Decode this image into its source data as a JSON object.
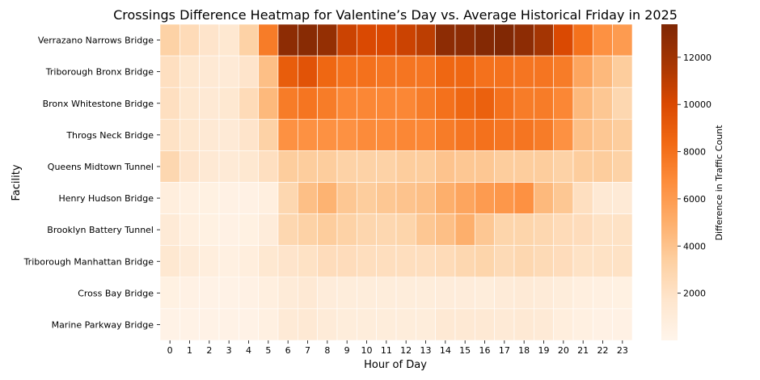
{
  "chart_data": {
    "type": "heatmap",
    "title": "Crossings Difference Heatmap for Valentine’s Day vs. Average Historical Friday in 2025",
    "xlabel": "Hour of Day",
    "ylabel": "Facility",
    "colorbar_label": "Difference in Traffic Count",
    "colorbar_ticks": [
      2000,
      4000,
      6000,
      8000,
      10000,
      12000
    ],
    "colorbar_range": [
      0,
      13400
    ],
    "colormap": [
      "#fff5eb",
      "#fee6ce",
      "#fdd0a2",
      "#fdae6b",
      "#fd8d3c",
      "#f16913",
      "#d94801",
      "#a63603",
      "#7f2704"
    ],
    "x": [
      "0",
      "1",
      "2",
      "3",
      "4",
      "5",
      "6",
      "7",
      "8",
      "9",
      "10",
      "11",
      "12",
      "13",
      "14",
      "15",
      "16",
      "17",
      "18",
      "19",
      "20",
      "21",
      "22",
      "23"
    ],
    "y": [
      "Verrazano Narrows Bridge",
      "Triborough Bronx Bridge",
      "Bronx Whitestone Bridge",
      "Throgs Neck Bridge",
      "Queens Midtown Tunnel",
      "Henry Hudson Bridge",
      "Brooklyn Battery Tunnel",
      "Triborough Manhattan Bridge",
      "Cross Bay Bridge",
      "Marine Parkway Bridge"
    ],
    "values": [
      [
        3200,
        2500,
        1800,
        1500,
        3200,
        7500,
        12800,
        13000,
        12500,
        10500,
        10000,
        10000,
        10500,
        11000,
        12800,
        12800,
        13200,
        13300,
        12800,
        11800,
        10000,
        8000,
        6500,
        6000
      ],
      [
        2200,
        1600,
        1300,
        1200,
        1800,
        4200,
        9000,
        9500,
        8500,
        8000,
        8000,
        7800,
        7800,
        7800,
        8500,
        8500,
        8000,
        8000,
        7800,
        7800,
        7500,
        5500,
        4500,
        3500
      ],
      [
        2200,
        1600,
        1300,
        1500,
        2500,
        4500,
        7500,
        7800,
        7500,
        7000,
        7000,
        7000,
        7000,
        7500,
        8000,
        8500,
        8800,
        8000,
        7500,
        7500,
        7000,
        4500,
        3800,
        2800
      ],
      [
        2000,
        1600,
        1300,
        1200,
        1800,
        3200,
        6500,
        6500,
        6500,
        6500,
        6800,
        6800,
        7000,
        7000,
        7500,
        7800,
        8000,
        7800,
        7800,
        7500,
        6500,
        4200,
        3800,
        3500
      ],
      [
        2800,
        1800,
        1300,
        1200,
        1500,
        2200,
        3500,
        3500,
        3500,
        3200,
        3200,
        3200,
        3500,
        3500,
        4000,
        3800,
        3800,
        3500,
        3500,
        3500,
        3200,
        3500,
        3500,
        3200
      ],
      [
        800,
        600,
        500,
        400,
        400,
        700,
        2800,
        4200,
        4800,
        3800,
        3500,
        3800,
        4000,
        4200,
        5000,
        5500,
        6000,
        6200,
        6500,
        4500,
        3800,
        2200,
        1300,
        1200
      ],
      [
        1200,
        700,
        500,
        400,
        500,
        1000,
        2800,
        3200,
        3500,
        3200,
        2900,
        2800,
        3000,
        3800,
        4200,
        5000,
        3800,
        3000,
        3000,
        2800,
        2500,
        2400,
        2000,
        2000
      ],
      [
        1500,
        1100,
        800,
        600,
        800,
        1500,
        1800,
        2000,
        2400,
        2400,
        2300,
        2300,
        2300,
        2300,
        2500,
        2800,
        3000,
        2600,
        2800,
        2600,
        2400,
        2000,
        2000,
        2000
      ],
      [
        500,
        400,
        300,
        300,
        400,
        700,
        1100,
        1300,
        1000,
        900,
        900,
        900,
        900,
        900,
        1000,
        1000,
        900,
        1100,
        1200,
        1100,
        900,
        700,
        600,
        500
      ],
      [
        300,
        300,
        300,
        300,
        300,
        600,
        1200,
        1300,
        1100,
        900,
        900,
        900,
        900,
        900,
        1300,
        1300,
        1300,
        1200,
        1300,
        1200,
        800,
        600,
        400,
        400
      ]
    ]
  }
}
